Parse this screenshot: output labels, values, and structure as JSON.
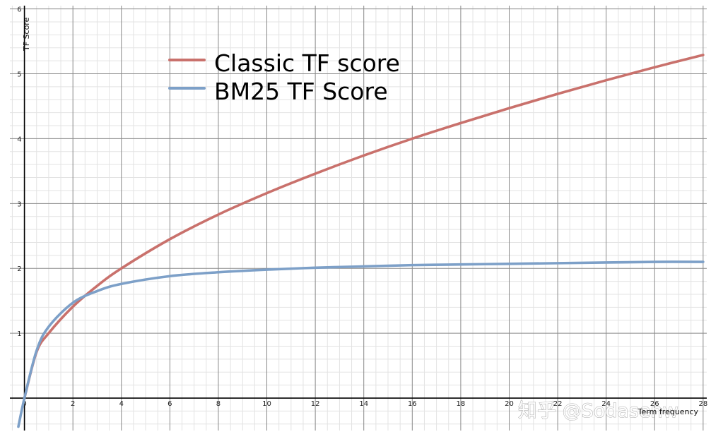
{
  "chart_data": {
    "type": "line",
    "title": "",
    "xlabel": "Term frequency",
    "ylabel": "TF Score",
    "xlim": [
      -0.6,
      28.15
    ],
    "ylim": [
      -0.5,
      6.05
    ],
    "x_ticks": [
      0,
      2,
      4,
      6,
      8,
      10,
      12,
      14,
      16,
      18,
      20,
      22,
      24,
      26,
      28
    ],
    "y_ticks": [
      1,
      2,
      3,
      4,
      5,
      6
    ],
    "grid": true,
    "legend_position": "top-left",
    "series": [
      {
        "name": "Classic TF score",
        "color": "#c9716c",
        "x": [
          0,
          0.5,
          1,
          2,
          3,
          4,
          6,
          8,
          10,
          12,
          14,
          16,
          18,
          20,
          22,
          24,
          26,
          28
        ],
        "y": [
          0,
          0.71,
          1.0,
          1.41,
          1.73,
          2.0,
          2.45,
          2.83,
          3.16,
          3.46,
          3.74,
          4.0,
          4.24,
          4.47,
          4.69,
          4.9,
          5.1,
          5.29
        ]
      },
      {
        "name": "BM25 TF Score",
        "color": "#7da0c8",
        "x": [
          -0.25,
          0,
          0.5,
          1,
          2,
          3,
          4,
          6,
          8,
          10,
          12,
          14,
          16,
          18,
          20,
          22,
          24,
          26,
          28
        ],
        "y": [
          -0.44,
          0,
          0.73,
          1.1,
          1.47,
          1.65,
          1.76,
          1.88,
          1.94,
          1.98,
          2.01,
          2.03,
          2.05,
          2.06,
          2.07,
          2.08,
          2.09,
          2.1,
          2.1
        ]
      }
    ]
  },
  "watermark": "知乎 @Sodasenw"
}
